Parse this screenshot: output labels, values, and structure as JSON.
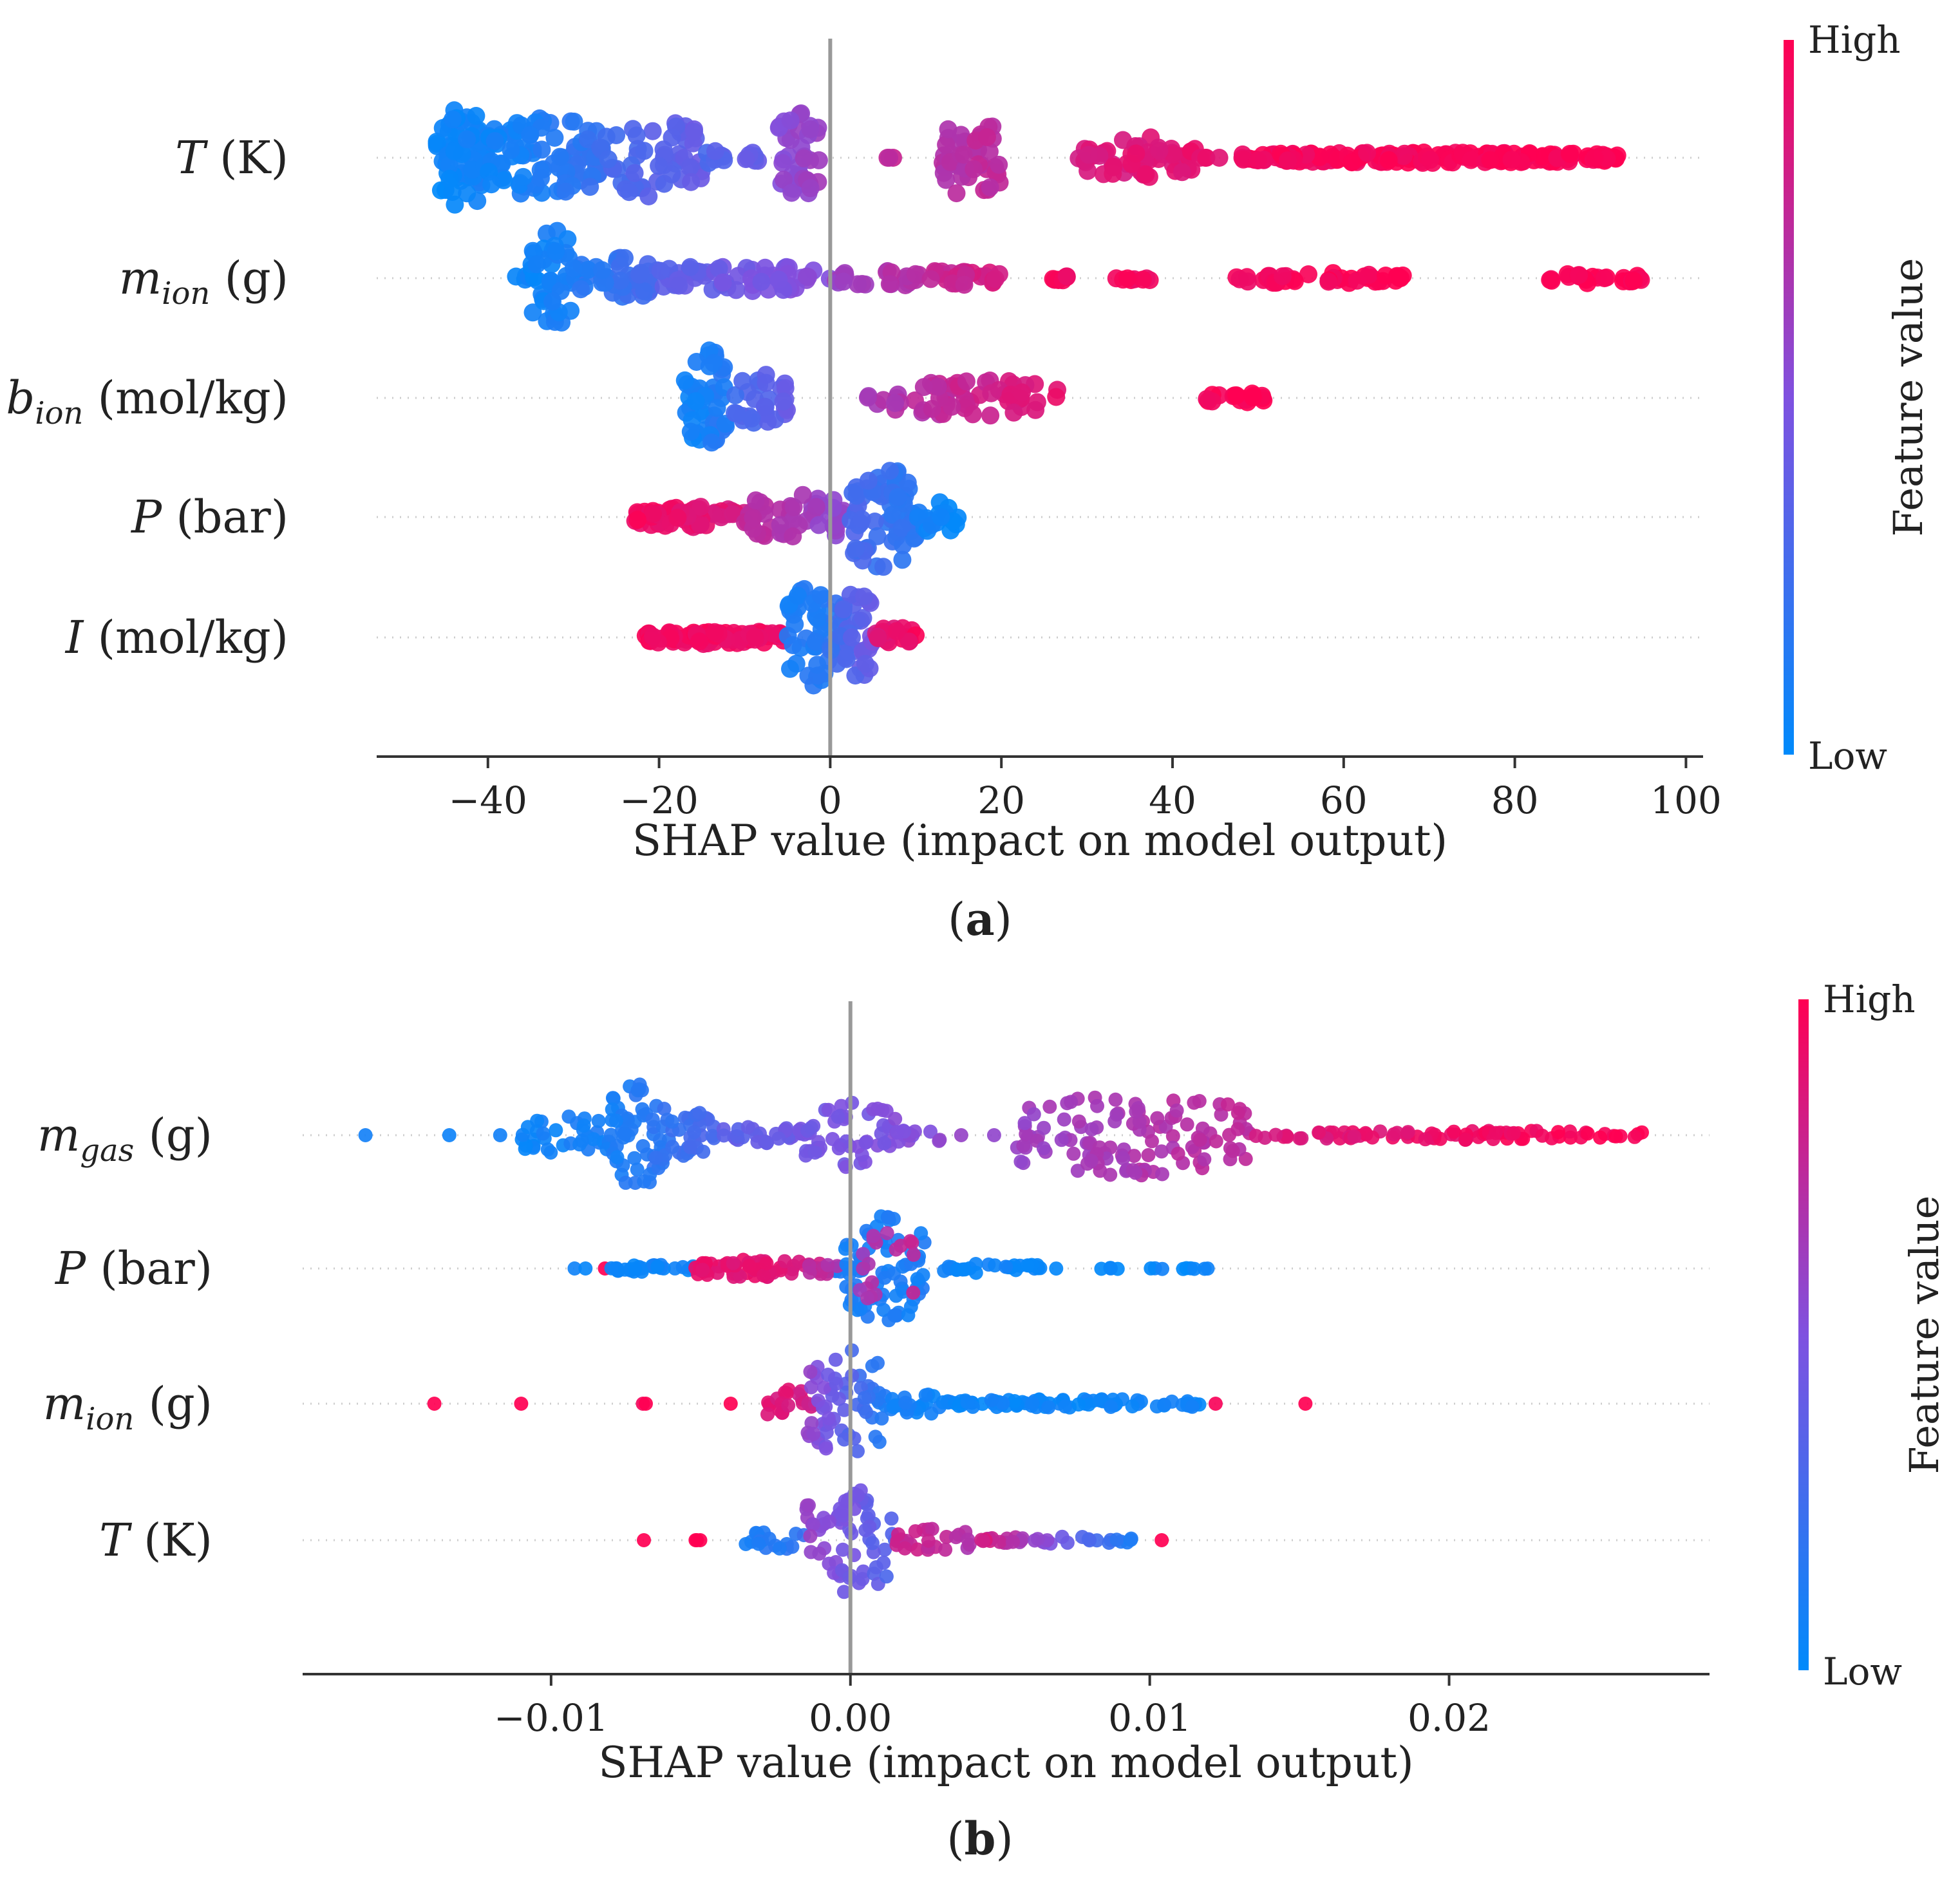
{
  "colors": {
    "low": "#008afb",
    "mid": "#7f51e0",
    "high": "#ff0052",
    "zero_line": "#999999",
    "axis": "#333333",
    "text": "#222222"
  },
  "chart_data": [
    {
      "type": "scatter",
      "subtype": "shap-beeswarm",
      "panel_label": "(a)",
      "panel_label_letter": "a",
      "xlabel": "SHAP value (impact on model output)",
      "xlim": [
        -53,
        102
      ],
      "xticks": [
        -40,
        -20,
        0,
        20,
        40,
        60,
        80,
        100
      ],
      "xtick_labels": [
        "−40",
        "−20",
        "0",
        "20",
        "40",
        "60",
        "80",
        "100"
      ],
      "colorbar": {
        "high_label": "High",
        "low_label": "Low",
        "title": "Feature value"
      },
      "features": [
        {
          "name": "T (K)",
          "sym": "T",
          "sub": "",
          "unit": " (K)",
          "clusters": [
            {
              "x0": -46,
              "x1": -40,
              "n": 70,
              "c0": 0.02,
              "c1": 0.08,
              "h": 1.0
            },
            {
              "x0": -40,
              "x1": -27,
              "n": 90,
              "c0": 0.05,
              "c1": 0.2,
              "h": 0.85
            },
            {
              "x0": -27,
              "x1": -15,
              "n": 55,
              "c0": 0.25,
              "c1": 0.4,
              "h": 0.8
            },
            {
              "x0": -15,
              "x1": -8,
              "n": 14,
              "c0": 0.3,
              "c1": 0.4,
              "h": 0.2
            },
            {
              "x0": -6,
              "x1": -1,
              "n": 40,
              "c0": 0.55,
              "c1": 0.62,
              "h": 0.95
            },
            {
              "x0": 6.5,
              "x1": 7.5,
              "n": 3,
              "c0": 0.75,
              "c1": 0.75,
              "h": 0.05
            },
            {
              "x0": 13,
              "x1": 20,
              "n": 45,
              "c0": 0.7,
              "c1": 0.75,
              "h": 0.8
            },
            {
              "x0": 29,
              "x1": 43,
              "n": 60,
              "c0": 0.85,
              "c1": 0.9,
              "h": 0.45
            },
            {
              "x0": 43,
              "x1": 46,
              "n": 4,
              "c0": 0.92,
              "c1": 0.92,
              "h": 0.05
            },
            {
              "x0": 48,
              "x1": 92,
              "n": 190,
              "c0": 0.95,
              "c1": 1.0,
              "h": 0.15
            }
          ]
        },
        {
          "name": "m_ion (g)",
          "sym": "m",
          "sub": "ion",
          "unit": " (g)",
          "clusters": [
            {
              "x0": -37,
              "x1": -35,
              "n": 5,
              "c0": 0.05,
              "c1": 0.05,
              "h": 0.1
            },
            {
              "x0": -35,
              "x1": -30,
              "n": 40,
              "c0": 0.05,
              "c1": 0.1,
              "h": 1.0
            },
            {
              "x0": -30,
              "x1": -20,
              "n": 50,
              "c0": 0.12,
              "c1": 0.3,
              "h": 0.45
            },
            {
              "x0": -20,
              "x1": 0,
              "n": 60,
              "c0": 0.35,
              "c1": 0.55,
              "h": 0.3
            },
            {
              "x0": 0,
              "x1": 20,
              "n": 50,
              "c0": 0.6,
              "c1": 0.85,
              "h": 0.2
            },
            {
              "x0": 26,
              "x1": 31,
              "n": 8,
              "c0": 0.95,
              "c1": 0.95,
              "h": 0.1
            },
            {
              "x0": 33,
              "x1": 38,
              "n": 8,
              "c0": 0.95,
              "c1": 0.95,
              "h": 0.1
            },
            {
              "x0": 46,
              "x1": 67,
              "n": 40,
              "c0": 0.95,
              "c1": 1.0,
              "h": 0.15
            },
            {
              "x0": 83,
              "x1": 95,
              "n": 25,
              "c0": 0.97,
              "c1": 1.0,
              "h": 0.15
            }
          ]
        },
        {
          "name": "b_ion (mol/kg)",
          "sym": "b",
          "sub": "ion",
          "unit": " (mol/kg)",
          "clusters": [
            {
              "x0": -17,
              "x1": -12,
              "n": 50,
              "c0": 0.05,
              "c1": 0.15,
              "h": 1.0
            },
            {
              "x0": -12,
              "x1": -5,
              "n": 30,
              "c0": 0.25,
              "c1": 0.4,
              "h": 0.55
            },
            {
              "x0": 4,
              "x1": 27,
              "n": 60,
              "c0": 0.65,
              "c1": 0.9,
              "h": 0.4
            },
            {
              "x0": 44,
              "x1": 51,
              "n": 18,
              "c0": 0.98,
              "c1": 1.0,
              "h": 0.15
            }
          ]
        },
        {
          "name": "P (bar)",
          "sym": "P",
          "sub": "",
          "unit": " (bar)",
          "clusters": [
            {
              "x0": -23,
              "x1": -10,
              "n": 55,
              "c0": 0.95,
              "c1": 0.85,
              "h": 0.25
            },
            {
              "x0": -10,
              "x1": 2,
              "n": 50,
              "c0": 0.75,
              "c1": 0.55,
              "h": 0.5
            },
            {
              "x0": 2,
              "x1": 10,
              "n": 70,
              "c0": 0.3,
              "c1": 0.15,
              "h": 1.0
            },
            {
              "x0": 10,
              "x1": 15,
              "n": 18,
              "c0": 0.08,
              "c1": 0.02,
              "h": 0.35
            }
          ]
        },
        {
          "name": "I (mol/kg)",
          "sym": "I",
          "sub": "",
          "unit": " (mol/kg)",
          "clusters": [
            {
              "x0": -22,
              "x1": -5,
              "n": 75,
              "c0": 0.97,
              "c1": 0.92,
              "h": 0.18
            },
            {
              "x0": -5,
              "x1": 0,
              "n": 40,
              "c0": 0.1,
              "c1": 0.15,
              "h": 1.0
            },
            {
              "x0": 0,
              "x1": 5,
              "n": 40,
              "c0": 0.2,
              "c1": 0.45,
              "h": 1.0
            },
            {
              "x0": 5,
              "x1": 10,
              "n": 20,
              "c0": 0.85,
              "c1": 0.95,
              "h": 0.25
            }
          ]
        }
      ]
    },
    {
      "type": "scatter",
      "subtype": "shap-beeswarm",
      "panel_label": "(b)",
      "panel_label_letter": "b",
      "xlabel": "SHAP value (impact on model output)",
      "xlim": [
        -0.0183,
        0.0287
      ],
      "xticks": [
        -0.01,
        0.0,
        0.01,
        0.02
      ],
      "xtick_labels": [
        "−0.01",
        "0.00",
        "0.01",
        "0.02"
      ],
      "colorbar": {
        "high_label": "High",
        "low_label": "Low",
        "title": "Feature value"
      },
      "features": [
        {
          "name": "m_gas (g)",
          "sym": "m",
          "sub": "gas",
          "unit": " (g)",
          "clusters": [
            {
              "x0": -0.0162,
              "x1": -0.0162,
              "n": 1,
              "c0": 0.05,
              "c1": 0.05,
              "h": 0.02
            },
            {
              "x0": -0.0134,
              "x1": -0.0134,
              "n": 1,
              "c0": 0.1,
              "c1": 0.1,
              "h": 0.02
            },
            {
              "x0": -0.0117,
              "x1": -0.0117,
              "n": 1,
              "c0": 0.1,
              "c1": 0.1,
              "h": 0.02
            },
            {
              "x0": -0.011,
              "x1": -0.008,
              "n": 35,
              "c0": 0.05,
              "c1": 0.1,
              "h": 0.4
            },
            {
              "x0": -0.008,
              "x1": -0.006,
              "n": 60,
              "c0": 0.1,
              "c1": 0.2,
              "h": 1.0
            },
            {
              "x0": -0.006,
              "x1": -0.0045,
              "n": 30,
              "c0": 0.2,
              "c1": 0.3,
              "h": 0.45
            },
            {
              "x0": -0.0045,
              "x1": -0.0015,
              "n": 30,
              "c0": 0.35,
              "c1": 0.45,
              "h": 0.2
            },
            {
              "x0": -0.0015,
              "x1": 0.0015,
              "n": 50,
              "c0": 0.45,
              "c1": 0.5,
              "h": 0.65
            },
            {
              "x0": 0.0015,
              "x1": 0.003,
              "n": 14,
              "c0": 0.5,
              "c1": 0.55,
              "h": 0.2
            },
            {
              "x0": 0.0037,
              "x1": 0.0037,
              "n": 1,
              "c0": 0.6,
              "c1": 0.6,
              "h": 0.02
            },
            {
              "x0": 0.0048,
              "x1": 0.0048,
              "n": 1,
              "c0": 0.6,
              "c1": 0.6,
              "h": 0.02
            },
            {
              "x0": 0.0055,
              "x1": 0.0135,
              "n": 120,
              "c0": 0.6,
              "c1": 0.75,
              "h": 0.75
            },
            {
              "x0": 0.0135,
              "x1": 0.0265,
              "n": 80,
              "c0": 0.85,
              "c1": 1.0,
              "h": 0.12
            }
          ]
        },
        {
          "name": "P (bar)",
          "sym": "P",
          "sub": "",
          "unit": " (bar)",
          "clusters": [
            {
              "x0": -0.0093,
              "x1": -0.0088,
              "n": 2,
              "c0": 0.05,
              "c1": 0.05,
              "h": 0.02
            },
            {
              "x0": -0.0082,
              "x1": -0.0082,
              "n": 1,
              "c0": 1.0,
              "c1": 1.0,
              "h": 0.02
            },
            {
              "x0": -0.008,
              "x1": -0.0052,
              "n": 30,
              "c0": 0.05,
              "c1": 0.05,
              "h": 0.1
            },
            {
              "x0": -0.0052,
              "x1": -0.001,
              "n": 60,
              "c0": 0.92,
              "c1": 0.85,
              "h": 0.2
            },
            {
              "x0": -0.001,
              "x1": 0.0005,
              "n": 15,
              "c0": 0.1,
              "c1": 0.1,
              "h": 0.1
            },
            {
              "x0": -0.0015,
              "x1": -0.0002,
              "n": 8,
              "c0": 0.75,
              "c1": 0.7,
              "h": 0.15
            },
            {
              "x0": -0.0002,
              "x1": 0.0025,
              "n": 70,
              "c0": 0.1,
              "c1": 0.1,
              "h": 1.0
            },
            {
              "x0": 0.0003,
              "x1": 0.0022,
              "n": 20,
              "c0": 0.65,
              "c1": 0.75,
              "h": 0.7
            },
            {
              "x0": 0.0025,
              "x1": 0.0065,
              "n": 28,
              "c0": 0.05,
              "c1": 0.05,
              "h": 0.12
            },
            {
              "x0": 0.0065,
              "x1": 0.012,
              "n": 14,
              "c0": 0.03,
              "c1": 0.03,
              "h": 0.05
            }
          ]
        },
        {
          "name": "m_ion (g)",
          "sym": "m",
          "sub": "ion",
          "unit": " (g)",
          "clusters": [
            {
              "x0": -0.0139,
              "x1": -0.0139,
              "n": 1,
              "c0": 1.0,
              "c1": 1.0,
              "h": 0.02
            },
            {
              "x0": -0.011,
              "x1": -0.011,
              "n": 1,
              "c0": 1.0,
              "c1": 1.0,
              "h": 0.02
            },
            {
              "x0": -0.0072,
              "x1": -0.0068,
              "n": 2,
              "c0": 1.0,
              "c1": 1.0,
              "h": 0.02
            },
            {
              "x0": -0.004,
              "x1": -0.004,
              "n": 1,
              "c0": 1.0,
              "c1": 1.0,
              "h": 0.02
            },
            {
              "x0": -0.003,
              "x1": -0.001,
              "n": 20,
              "c0": 0.9,
              "c1": 0.8,
              "h": 0.3
            },
            {
              "x0": -0.0015,
              "x1": 0.0012,
              "n": 60,
              "c0": 0.6,
              "c1": 0.1,
              "h": 1.0
            },
            {
              "x0": 0.0012,
              "x1": 0.003,
              "n": 20,
              "c0": 0.1,
              "c1": 0.05,
              "h": 0.25
            },
            {
              "x0": 0.003,
              "x1": 0.0118,
              "n": 80,
              "c0": 0.05,
              "c1": 0.05,
              "h": 0.12
            },
            {
              "x0": 0.0122,
              "x1": 0.0122,
              "n": 1,
              "c0": 1.0,
              "c1": 1.0,
              "h": 0.02
            },
            {
              "x0": 0.0152,
              "x1": 0.0152,
              "n": 1,
              "c0": 1.0,
              "c1": 1.0,
              "h": 0.02
            }
          ]
        },
        {
          "name": "T (K)",
          "sym": "T",
          "sub": "",
          "unit": " (K)",
          "clusters": [
            {
              "x0": -0.0069,
              "x1": -0.0069,
              "n": 1,
              "c0": 1.0,
              "c1": 1.0,
              "h": 0.02
            },
            {
              "x0": -0.0052,
              "x1": -0.0042,
              "n": 3,
              "c0": 1.0,
              "c1": 1.0,
              "h": 0.02
            },
            {
              "x0": -0.0035,
              "x1": -0.0015,
              "n": 20,
              "c0": 0.1,
              "c1": 0.2,
              "h": 0.2
            },
            {
              "x0": -0.0015,
              "x1": 0.0015,
              "n": 70,
              "c0": 0.6,
              "c1": 0.3,
              "h": 1.0
            },
            {
              "x0": 0.0015,
              "x1": 0.004,
              "n": 25,
              "c0": 0.8,
              "c1": 0.7,
              "h": 0.25
            },
            {
              "x0": 0.004,
              "x1": 0.0095,
              "n": 35,
              "c0": 0.9,
              "c1": 0.1,
              "h": 0.1
            },
            {
              "x0": 0.0104,
              "x1": 0.0104,
              "n": 1,
              "c0": 1.0,
              "c1": 1.0,
              "h": 0.02
            }
          ]
        }
      ]
    }
  ]
}
